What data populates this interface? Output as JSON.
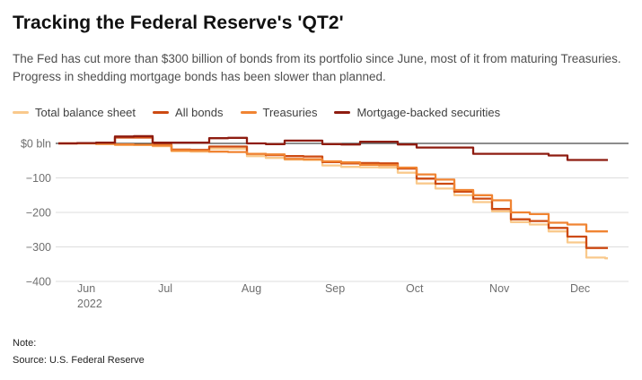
{
  "header": {
    "title": "Tracking the Federal Reserve's 'QT2'",
    "subtitle": "The Fed has cut more than $300 billion of bonds from its portfolio since June, most of it from maturing Treasuries. Progress in shedding mortgage bonds has been slower than planned."
  },
  "legend": {
    "items": [
      {
        "label": "Total balance sheet",
        "color": "#f9c98c"
      },
      {
        "label": "All bonds",
        "color": "#cd4a12"
      },
      {
        "label": "Treasuries",
        "color": "#f08432"
      },
      {
        "label": "Mortgage-backed securities",
        "color": "#8e1c10"
      }
    ]
  },
  "footer": {
    "note": "Note:",
    "source": "Source: U.S. Federal Reserve"
  },
  "chart_data": {
    "type": "line",
    "step": "after",
    "title": "Tracking the Federal Reserve's 'QT2'",
    "unit": "$ bln",
    "grid": true,
    "legend_position": "top",
    "ylim": [
      -400,
      40
    ],
    "x": [
      "May 25",
      "Jun 1",
      "Jun 8",
      "Jun 15",
      "Jun 22",
      "Jun 29",
      "Jul 6",
      "Jul 13",
      "Jul 20",
      "Jul 27",
      "Aug 3",
      "Aug 10",
      "Aug 17",
      "Aug 24",
      "Aug 31",
      "Sep 7",
      "Sep 14",
      "Sep 21",
      "Sep 28",
      "Oct 5",
      "Oct 12",
      "Oct 19",
      "Oct 26",
      "Nov 2",
      "Nov 9",
      "Nov 16",
      "Nov 23",
      "Nov 30",
      "Dec 7",
      "Dec 14"
    ],
    "series": [
      {
        "name": "Total balance sheet",
        "color": "#f9c98c",
        "values": [
          0,
          0,
          -2,
          -5,
          -5,
          -8,
          -23,
          -24,
          -15,
          -15,
          -37,
          -42,
          -47,
          -48,
          -64,
          -68,
          -69,
          -70,
          -85,
          -116,
          -131,
          -150,
          -170,
          -197,
          -228,
          -235,
          -255,
          -287,
          -331,
          -333
        ]
      },
      {
        "name": "All bonds",
        "color": "#cd4a12",
        "values": [
          0,
          1,
          1,
          17,
          17,
          -4,
          -18,
          -19,
          -9,
          -9,
          -30,
          -34,
          -37,
          -38,
          -54,
          -58,
          -57,
          -58,
          -73,
          -102,
          -117,
          -140,
          -160,
          -190,
          -220,
          -225,
          -245,
          -270,
          -303,
          -303
        ]
      },
      {
        "name": "Treasuries",
        "color": "#f08432",
        "values": [
          0,
          0,
          -1,
          -3,
          -4,
          -6,
          -20,
          -21,
          -24,
          -25,
          -30,
          -32,
          -45,
          -46,
          -52,
          -55,
          -62,
          -63,
          -70,
          -90,
          -105,
          -135,
          -150,
          -165,
          -200,
          -205,
          -230,
          -235,
          -255,
          -255
        ]
      },
      {
        "name": "Mortgage-backed securities",
        "color": "#8e1c10",
        "values": [
          0,
          1,
          2,
          20,
          21,
          2,
          2,
          2,
          15,
          16,
          0,
          -2,
          8,
          8,
          -2,
          -3,
          5,
          5,
          -3,
          -12,
          -12,
          -12,
          -30,
          -30,
          -30,
          -30,
          -35,
          -48,
          -48,
          -48
        ]
      }
    ],
    "y_ticks": [
      {
        "value": 0,
        "label": "$0 bln"
      },
      {
        "value": -100,
        "label": "−100"
      },
      {
        "value": -200,
        "label": "−200"
      },
      {
        "value": -300,
        "label": "−300"
      },
      {
        "value": -400,
        "label": "−400"
      }
    ],
    "x_months": [
      {
        "label": "Jun",
        "week": 1,
        "sublabel": "2022"
      },
      {
        "label": "Jul",
        "week": 5.29
      },
      {
        "label": "Aug",
        "week": 9.71
      },
      {
        "label": "Sep",
        "week": 14.14
      },
      {
        "label": "Oct",
        "week": 18.43
      },
      {
        "label": "Nov",
        "week": 22.86
      },
      {
        "label": "Dec",
        "week": 27.14
      }
    ],
    "colors": {
      "grid": "#dddddd",
      "zero_line": "#1a1a1a",
      "tick_text": "#6f6f6f"
    }
  }
}
